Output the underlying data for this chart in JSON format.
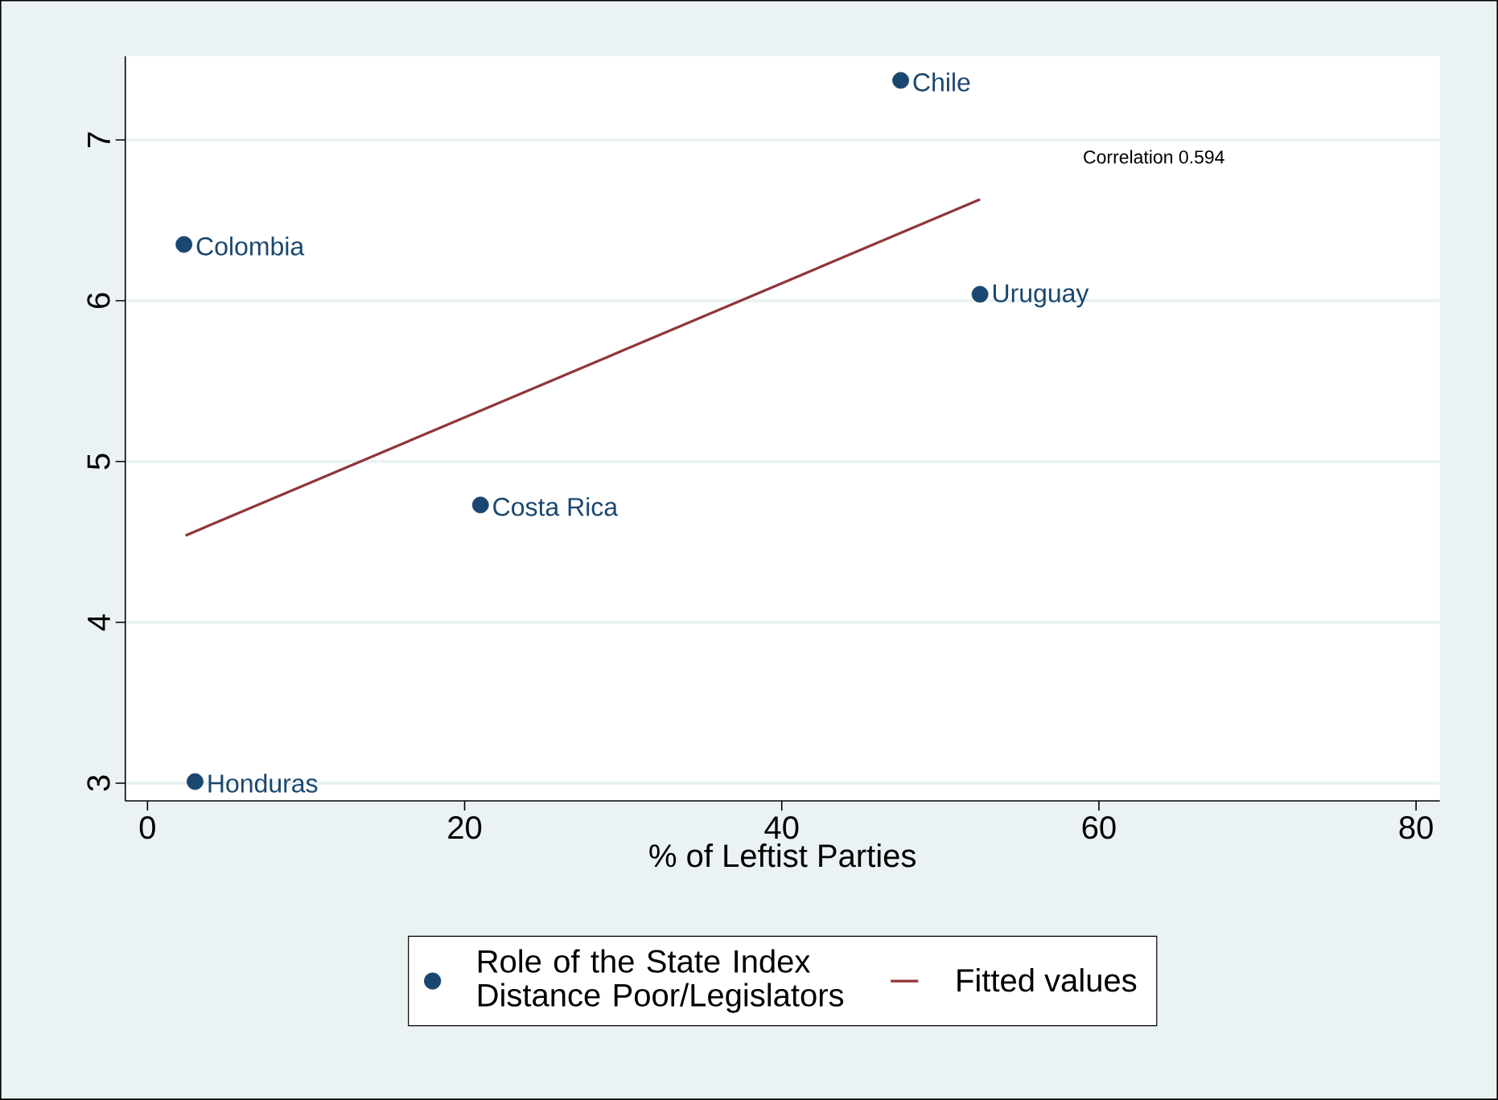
{
  "chart_data": {
    "type": "scatter",
    "xlabel": "% of Leftist Parties",
    "xlim": [
      -1.4,
      81.5
    ],
    "xticks": [
      0,
      20,
      40,
      60,
      80
    ],
    "ylim": [
      2.89,
      7.52
    ],
    "yticks": [
      3,
      4,
      5,
      6,
      7
    ],
    "grid": "y",
    "legend": "bottom",
    "series": [
      {
        "name": "Role of the State Index Distance Poor/Legislators",
        "type": "scatter",
        "marker": "circle",
        "color": "#1a476f",
        "x": [
          47.5,
          2.3,
          52.5,
          21.0,
          3.0
        ],
        "values": [
          7.37,
          6.35,
          6.04,
          4.73,
          3.01
        ]
      },
      {
        "name": "Fitted values",
        "type": "line",
        "marker": "none",
        "color": "#90353b",
        "line_style": "solid",
        "x": [
          2.4,
          52.5
        ],
        "values": [
          4.54,
          6.63
        ]
      }
    ],
    "annotations": [
      {
        "text": "Chile",
        "x": 47.5,
        "y": 7.37
      },
      {
        "text": "Colombia",
        "x": 2.3,
        "y": 6.35
      },
      {
        "text": "Uruguay",
        "x": 52.5,
        "y": 6.04
      },
      {
        "text": "Costa Rica",
        "x": 21.0,
        "y": 4.73
      },
      {
        "text": "Honduras",
        "x": 3.0,
        "y": 3.01
      },
      "Correlation 0.594"
    ]
  }
}
